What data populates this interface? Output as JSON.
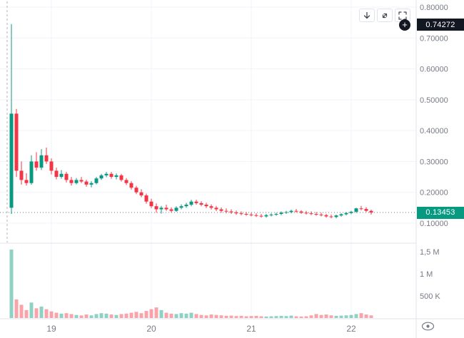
{
  "colors": {
    "up": "#089981",
    "down": "#f23645",
    "up_volume": "rgba(8,153,129,0.45)",
    "down_volume": "rgba(242,54,69,0.45)",
    "grid": "#f0f3fa",
    "axis_text": "#787b86",
    "panel_border": "#e0e3eb",
    "black_badge_bg": "#131722",
    "green_badge_bg": "#089981",
    "icon": "#434651"
  },
  "toolbar": {
    "buttons": [
      {
        "name": "scroll-down-button",
        "icon": "arrow-down-icon"
      },
      {
        "name": "maximize-pane-button",
        "icon": "diagonal-expand-icon"
      },
      {
        "name": "fullscreen-button",
        "icon": "fullscreen-frame-icon"
      }
    ]
  },
  "price_scale": {
    "high_badge": {
      "label": "0.74272",
      "value": 0.74272
    },
    "current_badge": {
      "label": "0.13453",
      "value": 0.13453
    },
    "plus_label": "+"
  },
  "chart_data": {
    "type": "candlestick+volume",
    "title": "",
    "price_axis": {
      "min": 0.1,
      "max": 0.8,
      "tick_step": 0.1,
      "ticks": [
        {
          "label": "0.80000",
          "value": 0.8
        },
        {
          "label": "0.70000",
          "value": 0.7
        },
        {
          "label": "0.60000",
          "value": 0.6
        },
        {
          "label": "0.50000",
          "value": 0.5
        },
        {
          "label": "0.40000",
          "value": 0.4
        },
        {
          "label": "0.30000",
          "value": 0.3
        },
        {
          "label": "0.20000",
          "value": 0.2
        },
        {
          "label": "0.10000",
          "value": 0.1
        }
      ]
    },
    "volume_axis": {
      "ticks": [
        {
          "label": "1,5 M",
          "value_k": 1500
        },
        {
          "label": "1 M",
          "value_k": 1000
        },
        {
          "label": "500 K",
          "value_k": 500
        }
      ]
    },
    "x_ticks": [
      {
        "index": 8,
        "label": "19"
      },
      {
        "index": 28,
        "label": "20"
      },
      {
        "index": 48,
        "label": "21"
      },
      {
        "index": 68,
        "label": "22"
      }
    ],
    "last_price": 0.13453,
    "high_marker_price": 0.74272,
    "ohlcv": [
      [
        0.15,
        0.745,
        0.13,
        0.455,
        1550
      ],
      [
        0.455,
        0.47,
        0.25,
        0.27,
        420
      ],
      [
        0.27,
        0.3,
        0.225,
        0.24,
        300
      ],
      [
        0.24,
        0.262,
        0.222,
        0.23,
        180
      ],
      [
        0.23,
        0.32,
        0.225,
        0.3,
        350
      ],
      [
        0.3,
        0.33,
        0.27,
        0.28,
        220
      ],
      [
        0.28,
        0.34,
        0.272,
        0.32,
        260
      ],
      [
        0.32,
        0.345,
        0.292,
        0.3,
        200
      ],
      [
        0.3,
        0.31,
        0.258,
        0.27,
        150
      ],
      [
        0.27,
        0.28,
        0.242,
        0.25,
        120
      ],
      [
        0.25,
        0.272,
        0.244,
        0.26,
        100
      ],
      [
        0.26,
        0.266,
        0.232,
        0.24,
        110
      ],
      [
        0.24,
        0.25,
        0.222,
        0.23,
        90
      ],
      [
        0.23,
        0.246,
        0.226,
        0.24,
        70
      ],
      [
        0.24,
        0.25,
        0.23,
        0.235,
        60
      ],
      [
        0.235,
        0.241,
        0.218,
        0.225,
        80
      ],
      [
        0.225,
        0.236,
        0.216,
        0.23,
        60
      ],
      [
        0.23,
        0.25,
        0.226,
        0.245,
        90
      ],
      [
        0.245,
        0.26,
        0.24,
        0.255,
        110
      ],
      [
        0.255,
        0.266,
        0.249,
        0.26,
        100
      ],
      [
        0.26,
        0.266,
        0.244,
        0.25,
        80
      ],
      [
        0.25,
        0.261,
        0.242,
        0.255,
        70
      ],
      [
        0.255,
        0.26,
        0.235,
        0.24,
        90
      ],
      [
        0.24,
        0.246,
        0.224,
        0.23,
        100
      ],
      [
        0.23,
        0.236,
        0.209,
        0.215,
        120
      ],
      [
        0.215,
        0.221,
        0.194,
        0.2,
        140
      ],
      [
        0.2,
        0.21,
        0.184,
        0.19,
        110
      ],
      [
        0.19,
        0.196,
        0.163,
        0.17,
        160
      ],
      [
        0.17,
        0.179,
        0.149,
        0.155,
        200
      ],
      [
        0.155,
        0.164,
        0.134,
        0.145,
        240
      ],
      [
        0.145,
        0.156,
        0.131,
        0.15,
        180
      ],
      [
        0.15,
        0.16,
        0.14,
        0.145,
        120
      ],
      [
        0.145,
        0.151,
        0.135,
        0.14,
        100
      ],
      [
        0.14,
        0.155,
        0.137,
        0.15,
        90
      ],
      [
        0.15,
        0.161,
        0.145,
        0.155,
        110
      ],
      [
        0.155,
        0.166,
        0.15,
        0.16,
        100
      ],
      [
        0.16,
        0.176,
        0.155,
        0.17,
        120
      ],
      [
        0.17,
        0.176,
        0.16,
        0.165,
        90
      ],
      [
        0.165,
        0.171,
        0.155,
        0.16,
        70
      ],
      [
        0.16,
        0.166,
        0.149,
        0.155,
        60
      ],
      [
        0.155,
        0.161,
        0.144,
        0.15,
        80
      ],
      [
        0.15,
        0.156,
        0.139,
        0.145,
        70
      ],
      [
        0.145,
        0.151,
        0.134,
        0.14,
        60
      ],
      [
        0.14,
        0.148,
        0.132,
        0.138,
        50
      ],
      [
        0.138,
        0.145,
        0.13,
        0.135,
        55
      ],
      [
        0.135,
        0.141,
        0.127,
        0.132,
        45
      ],
      [
        0.132,
        0.138,
        0.126,
        0.13,
        50
      ],
      [
        0.13,
        0.136,
        0.124,
        0.128,
        40
      ],
      [
        0.128,
        0.134,
        0.122,
        0.126,
        45
      ],
      [
        0.126,
        0.132,
        0.12,
        0.124,
        50
      ],
      [
        0.124,
        0.13,
        0.118,
        0.122,
        40
      ],
      [
        0.122,
        0.13,
        0.118,
        0.126,
        35
      ],
      [
        0.126,
        0.132,
        0.122,
        0.128,
        40
      ],
      [
        0.128,
        0.134,
        0.124,
        0.13,
        45
      ],
      [
        0.13,
        0.138,
        0.126,
        0.134,
        50
      ],
      [
        0.134,
        0.14,
        0.13,
        0.136,
        45
      ],
      [
        0.136,
        0.144,
        0.132,
        0.14,
        55
      ],
      [
        0.14,
        0.146,
        0.134,
        0.138,
        40
      ],
      [
        0.138,
        0.142,
        0.13,
        0.134,
        35
      ],
      [
        0.134,
        0.14,
        0.128,
        0.132,
        40
      ],
      [
        0.132,
        0.138,
        0.126,
        0.13,
        60
      ],
      [
        0.13,
        0.136,
        0.124,
        0.128,
        90
      ],
      [
        0.128,
        0.134,
        0.122,
        0.126,
        70
      ],
      [
        0.126,
        0.13,
        0.118,
        0.122,
        80
      ],
      [
        0.122,
        0.128,
        0.116,
        0.12,
        60
      ],
      [
        0.12,
        0.128,
        0.116,
        0.125,
        50
      ],
      [
        0.125,
        0.132,
        0.121,
        0.129,
        55
      ],
      [
        0.129,
        0.136,
        0.125,
        0.133,
        60
      ],
      [
        0.133,
        0.14,
        0.129,
        0.137,
        70
      ],
      [
        0.137,
        0.15,
        0.133,
        0.148,
        90
      ],
      [
        0.148,
        0.156,
        0.142,
        0.146,
        110
      ],
      [
        0.146,
        0.152,
        0.136,
        0.14,
        80
      ],
      [
        0.14,
        0.144,
        0.128,
        0.13453,
        60
      ]
    ]
  }
}
